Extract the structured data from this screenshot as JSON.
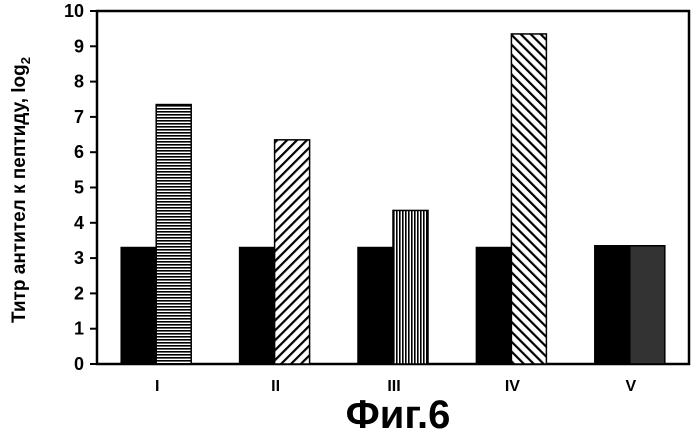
{
  "chart_data": {
    "type": "bar",
    "categories": [
      "I",
      "II",
      "III",
      "IV",
      "V"
    ],
    "series": [
      {
        "values": [
          3.3,
          3.3,
          3.3,
          3.3,
          3.35
        ],
        "fill": "solid-black"
      },
      {
        "values": [
          7.35,
          6.35,
          4.35,
          9.35,
          3.35
        ],
        "fills": [
          "horizontal-stripes",
          "diagonal-stripes",
          "vertical-stripes",
          "diagonal-stripes-reverse",
          "solid-dark-gray"
        ]
      }
    ],
    "ylabel": "Титр антител к пептиду, log",
    "ylabel_subscript": "2",
    "ylim": [
      0,
      10
    ],
    "yticks": [
      "0",
      "1",
      "2",
      "3",
      "4",
      "5",
      "6",
      "7",
      "8",
      "9",
      "10"
    ],
    "grid": false,
    "caption": "Фиг.6"
  }
}
